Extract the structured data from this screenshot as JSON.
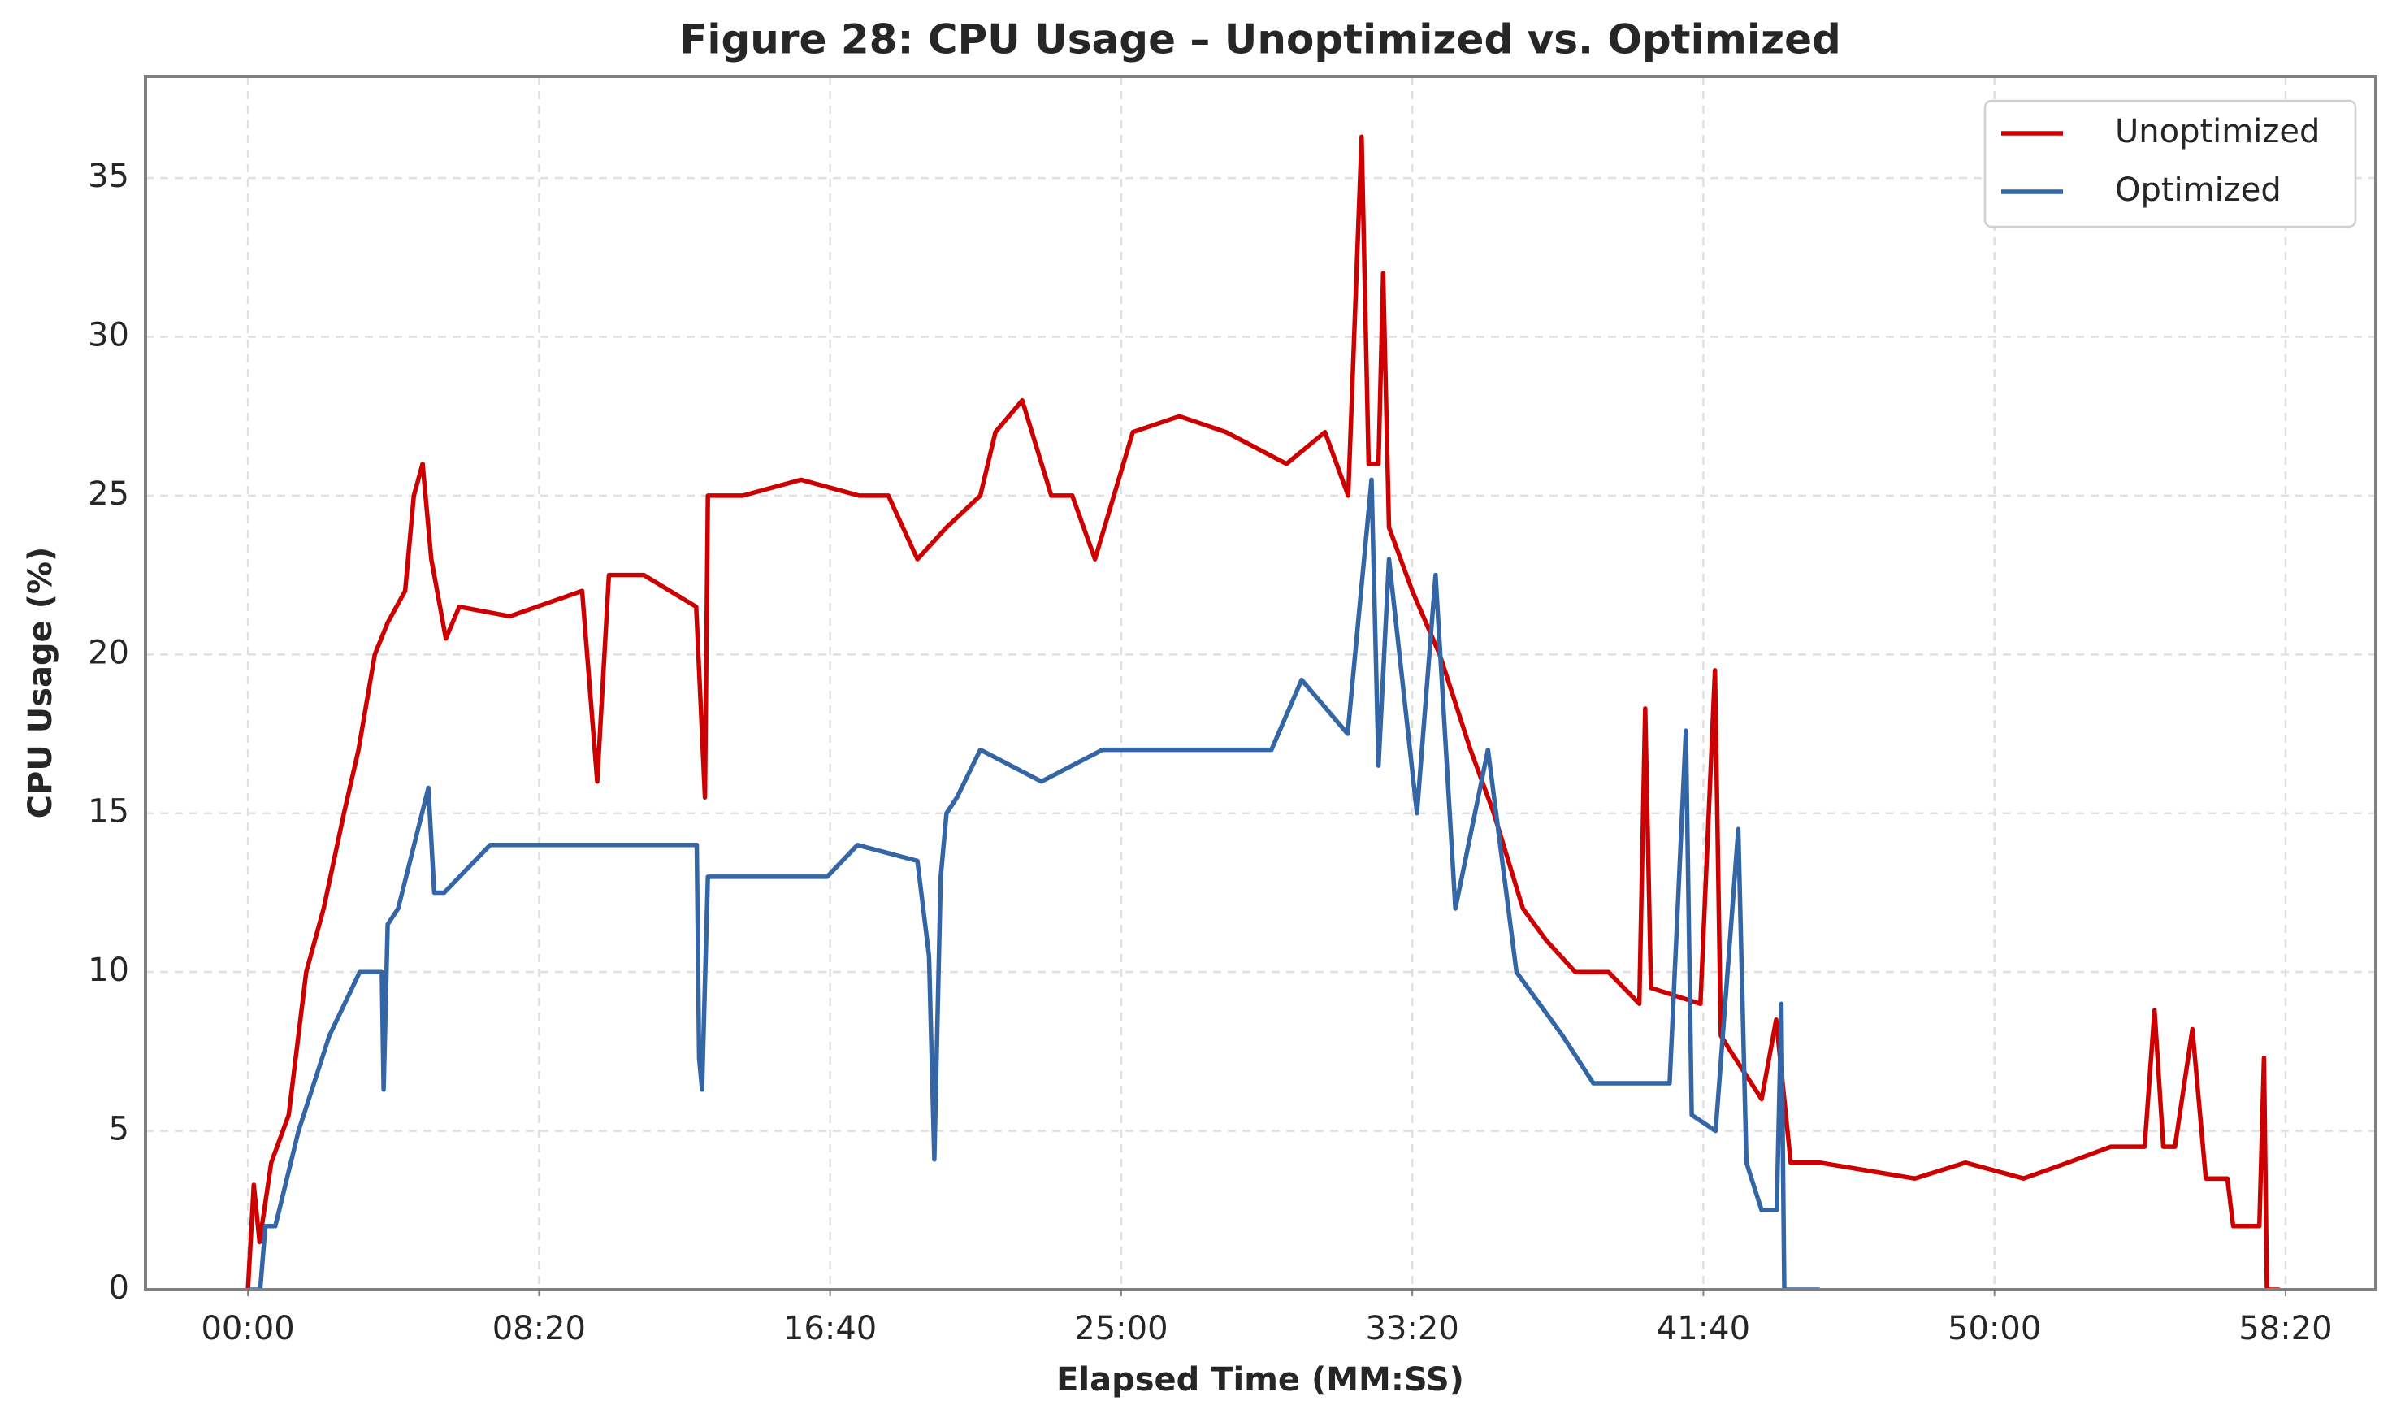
{
  "chart_data": {
    "type": "line",
    "title": "Figure 28: CPU Usage – Unoptimized vs. Optimized",
    "x_label": "Elapsed Time (MM:SS)",
    "y_label": "CPU Usage (%)",
    "xlim": [
      -176,
      3655
    ],
    "ylim": [
      0,
      38.2
    ],
    "xticks": [
      {
        "value": 0,
        "label": "00:00"
      },
      {
        "value": 500,
        "label": "08:20"
      },
      {
        "value": 1000,
        "label": "16:40"
      },
      {
        "value": 1500,
        "label": "25:00"
      },
      {
        "value": 2000,
        "label": "33:20"
      },
      {
        "value": 2500,
        "label": "41:40"
      },
      {
        "value": 3000,
        "label": "50:00"
      },
      {
        "value": 3500,
        "label": "58:20"
      }
    ],
    "yticks": [
      0,
      5,
      10,
      15,
      20,
      25,
      30,
      35
    ],
    "grid": true,
    "legend": "upper right",
    "series": [
      {
        "name": "Unoptimized",
        "color": "#cc0000",
        "x": [
          0,
          10,
          20,
          40,
          70,
          100,
          130,
          165,
          190,
          218,
          240,
          270,
          285,
          300,
          315,
          340,
          363,
          450,
          574,
          600,
          620,
          680,
          770,
          785,
          790,
          850,
          950,
          1050,
          1100,
          1150,
          1200,
          1258,
          1284,
          1330,
          1380,
          1416,
          1455,
          1520,
          1600,
          1680,
          1784,
          1850,
          1890,
          1913,
          1925,
          1942,
          1950,
          1960,
          2000,
          2047,
          2100,
          2140,
          2190,
          2230,
          2280,
          2337,
          2390,
          2400,
          2410,
          2495,
          2520,
          2530,
          2547,
          2600,
          2625,
          2650,
          2700,
          2863,
          2950,
          3050,
          3126,
          3200,
          3258,
          3275,
          3290,
          3310,
          3340,
          3363,
          3400,
          3410,
          3455,
          3463,
          3468,
          3490
        ],
        "values": [
          0,
          3.3,
          1.5,
          4,
          5.5,
          10,
          12,
          15,
          17,
          20,
          21,
          22,
          25,
          26,
          23,
          20.5,
          21.5,
          21.2,
          22,
          16,
          22.5,
          22.5,
          21.5,
          15.5,
          25,
          25,
          25.5,
          25,
          25,
          23,
          24,
          25,
          27,
          28,
          25,
          25,
          23,
          27,
          27.5,
          27,
          26,
          27,
          25,
          36.3,
          26,
          26,
          32,
          24,
          22,
          20,
          17,
          15,
          12,
          11,
          10,
          10,
          9,
          18.3,
          9.5,
          9,
          19.5,
          8,
          7.5,
          6,
          8.5,
          4,
          4,
          3.5,
          4,
          3.5,
          4,
          4.5,
          4.5,
          8.8,
          4.5,
          4.5,
          8.2,
          3.5,
          3.5,
          2,
          2,
          7.3,
          0,
          0
        ]
      },
      {
        "name": "Optimized",
        "color": "#3465a4",
        "x": [
          0,
          21,
          30,
          47,
          87,
          140,
          192,
          230,
          233,
          240,
          258,
          310,
          320,
          337,
          416,
          500,
          626,
          700,
          771,
          775,
          780,
          790,
          810,
          995,
          1047,
          1150,
          1170,
          1179,
          1190,
          1200,
          1218,
          1258,
          1363,
          1468,
          1600,
          1758,
          1810,
          1889,
          1930,
          1942,
          1960,
          2008,
          2040,
          2074,
          2130,
          2179,
          2258,
          2311,
          2380,
          2442,
          2470,
          2480,
          2521,
          2560,
          2574,
          2600,
          2626,
          2634,
          2639,
          2700
        ],
        "values": [
          0,
          0,
          2,
          2,
          5,
          8,
          10,
          10,
          6.3,
          11.5,
          12,
          15.8,
          12.5,
          12.5,
          14,
          14,
          14,
          14,
          14,
          7.3,
          6.3,
          13,
          13,
          13,
          14,
          13.5,
          10.5,
          4.1,
          13,
          15,
          15.5,
          17,
          16,
          17,
          17,
          17,
          19.2,
          17.5,
          25.5,
          16.5,
          23,
          15,
          22.5,
          12,
          17,
          10,
          8,
          6.5,
          6.5,
          6.5,
          17.6,
          5.5,
          5,
          14.5,
          4,
          2.5,
          2.5,
          9,
          0,
          0
        ]
      }
    ]
  }
}
